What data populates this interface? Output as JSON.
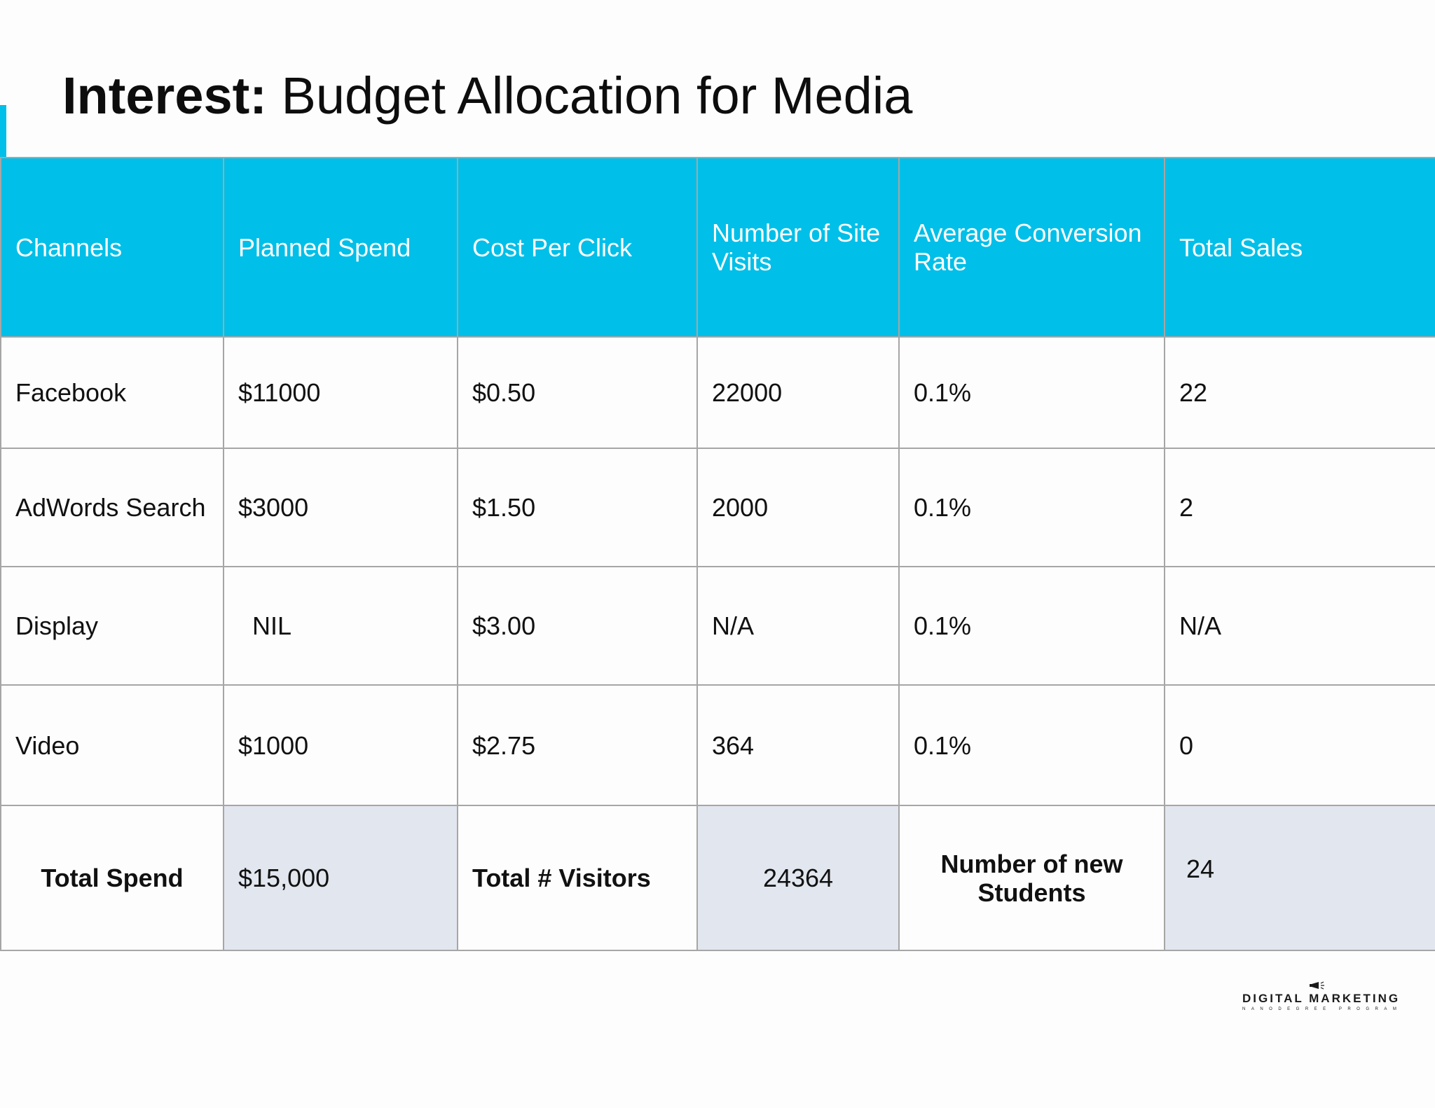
{
  "title": {
    "bold": "Interest:",
    "rest": "Budget Allocation for Media"
  },
  "table": {
    "headers": [
      "Channels",
      "Planned Spend",
      "Cost Per Click",
      "Number of Site Visits",
      "Average Conversion Rate",
      "Total Sales"
    ],
    "rows": [
      [
        "Facebook",
        "$11000",
        "$0.50",
        "22000",
        "0.1%",
        "22"
      ],
      [
        "AdWords Search",
        "$3000",
        "$1.50",
        "2000",
        "0.1%",
        "2"
      ],
      [
        "Display",
        "NIL",
        "$3.00",
        "N/A",
        "0.1%",
        "N/A"
      ],
      [
        "Video",
        "$1000",
        "$2.75",
        "364",
        "0.1%",
        "0"
      ]
    ],
    "summary": {
      "total_spend_label": "Total Spend",
      "total_spend_value": "$15,000",
      "total_visitors_label": "Total # Visitors",
      "total_visitors_value": "24364",
      "new_students_label": "Number of new Students",
      "new_students_value": "24"
    }
  },
  "logo": {
    "main": "DIGITAL MARKETING",
    "sub": "NANODEGREE PROGRAM"
  },
  "colors": {
    "header_background": "#00bfe8",
    "header_text": "#ffffff",
    "summary_value_background": "#e2e6ee",
    "border": "#a6a6a6"
  }
}
